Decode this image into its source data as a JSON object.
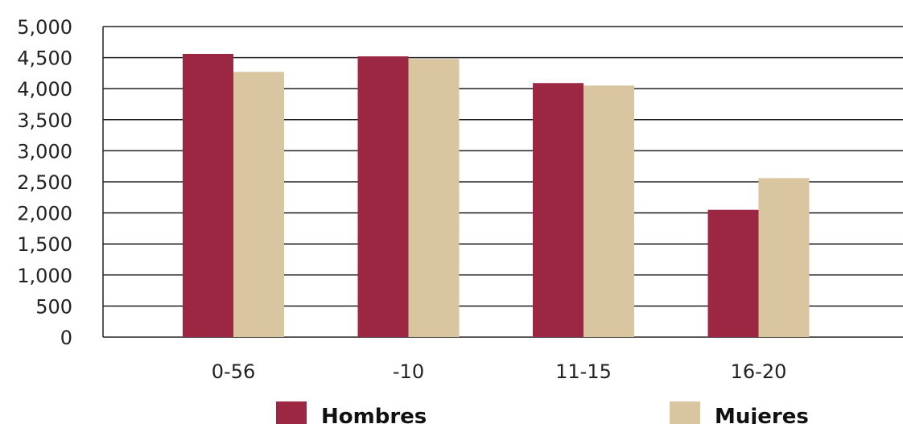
{
  "chart_data": {
    "type": "bar",
    "title": "",
    "xlabel": "",
    "ylabel": "",
    "categories": [
      "0-56",
      "-10",
      "11-15",
      "16-20"
    ],
    "series": [
      {
        "name": "Hombres",
        "color": "#9b2743",
        "values": [
          4560,
          4520,
          4090,
          2050
        ]
      },
      {
        "name": "Mujeres",
        "color": "#d9c6a0",
        "values": [
          4270,
          4480,
          4050,
          2560
        ]
      }
    ],
    "ylim": [
      0,
      5000
    ],
    "yticks": [
      "0",
      "500",
      "1,000",
      "1,500",
      "2,000",
      "2,500",
      "3,000",
      "3,500",
      "4,000",
      "4,500",
      "5,000"
    ],
    "grid": true,
    "legend_position": "bottom"
  }
}
